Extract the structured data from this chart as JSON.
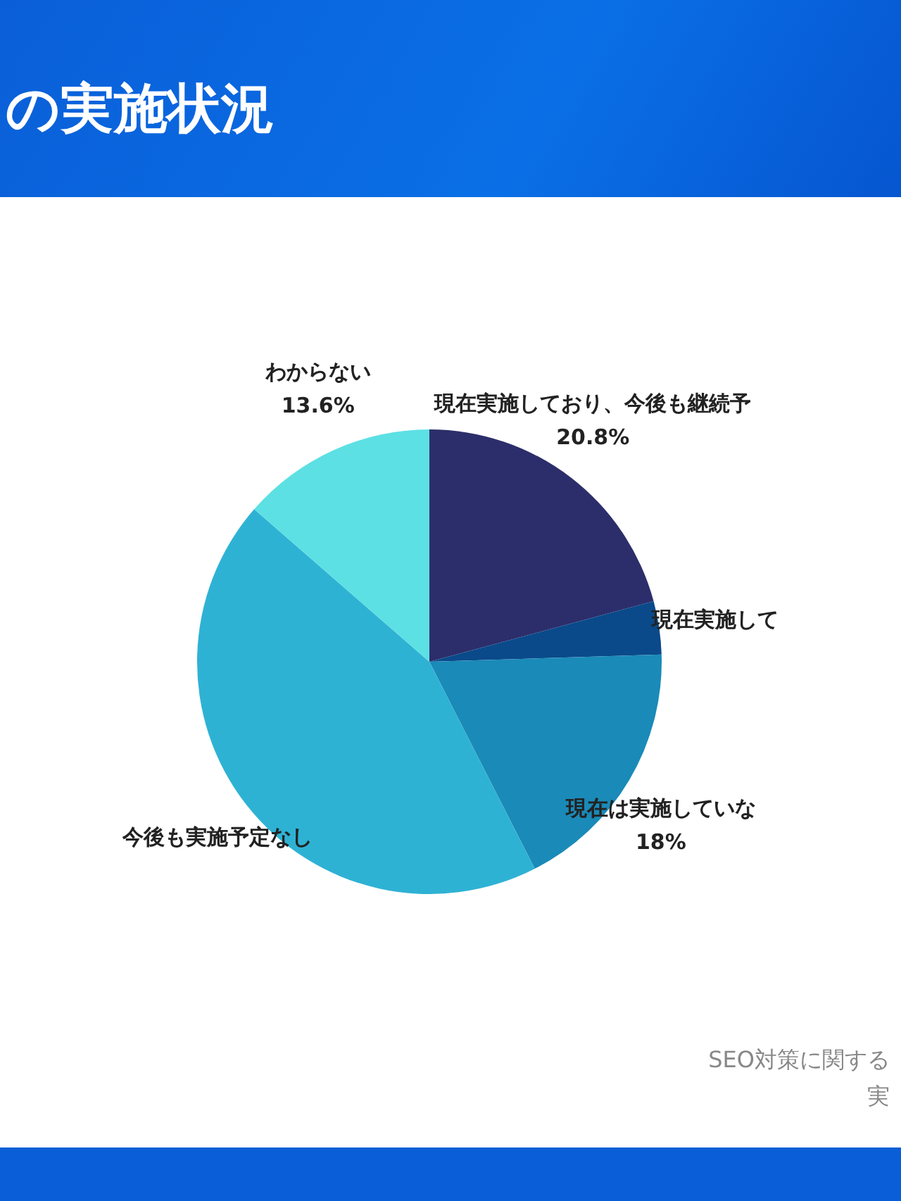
{
  "chart_data": {
    "type": "pie",
    "title": "の実施状況",
    "categories": [
      "現在実施しており、今後も継続予",
      "現在実施して",
      "現在は実施していな",
      "今後も実施予定なし",
      "わからない"
    ],
    "values": [
      20.8,
      3.7,
      18,
      43.9,
      13.6
    ],
    "colors": [
      "#2c2e6b",
      "#0a4a8a",
      "#1a8ab8",
      "#2eb2d4",
      "#5ce0e4"
    ],
    "value_labels": [
      "20.8%",
      null,
      "18%",
      null,
      "13.6%"
    ],
    "annotations": [
      "SEO対策に関する",
      "実"
    ]
  }
}
